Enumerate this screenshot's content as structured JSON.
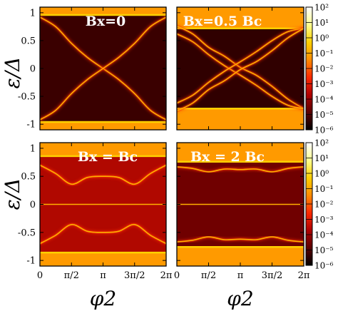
{
  "chart_data": {
    "type": "heatmap",
    "ylabel": "ε/Δ",
    "xlabel": "φ2",
    "x_ticks": [
      "0",
      "π/2",
      "π",
      "3π/2",
      "2π"
    ],
    "y_ticks": [
      "1",
      "0.5",
      "0",
      "-0.5",
      "-1"
    ],
    "xlim": [
      0,
      6.2832
    ],
    "ylim": [
      -1.1,
      1.1
    ],
    "colorbar": {
      "scale": "log",
      "range": [
        1e-06,
        100
      ],
      "ticks": [
        "10²",
        "10¹",
        "10⁰",
        "10⁻¹",
        "10⁻²",
        "10⁻³",
        "10⁻⁴",
        "10⁻⁵",
        "10⁻⁶"
      ],
      "colors": [
        "#000000",
        "#5a0000",
        "#b00000",
        "#ff2a00",
        "#ff8c00",
        "#ffd000",
        "#ffff90",
        "#ffffff"
      ]
    },
    "panels": [
      {
        "label": "Bx=0",
        "gap_edge": 0.96,
        "background": "#3a0000",
        "bands": [
          {
            "name": "band 1",
            "x": [
              0,
              0.785,
              1.571,
              2.356,
              3.142,
              3.927,
              4.712,
              5.498,
              6.283
            ],
            "y": [
              0.92,
              0.75,
              0.45,
              0.2,
              0.0,
              -0.2,
              -0.45,
              -0.75,
              -0.92
            ]
          },
          {
            "name": "band 2",
            "x": [
              0,
              0.785,
              1.571,
              2.356,
              3.142,
              3.927,
              4.712,
              5.498,
              6.283
            ],
            "y": [
              -0.92,
              -0.75,
              -0.45,
              -0.2,
              0.0,
              0.2,
              0.45,
              0.75,
              0.92
            ]
          }
        ]
      },
      {
        "label": "Bx=0.5 Bc",
        "gap_edge": 0.72,
        "background": "#300000",
        "bands": [
          {
            "name": "band 1",
            "x": [
              0,
              0.785,
              1.571,
              2.356,
              3.142,
              3.927,
              4.712,
              5.498,
              6.283
            ],
            "y": [
              0.76,
              0.62,
              0.38,
              0.22,
              0.02,
              -0.12,
              -0.32,
              -0.55,
              -0.72
            ]
          },
          {
            "name": "band 2",
            "x": [
              0,
              0.785,
              1.571,
              2.356,
              3.142,
              3.927,
              4.712,
              5.498,
              6.283
            ],
            "y": [
              0.62,
              0.48,
              0.25,
              0.05,
              -0.12,
              -0.3,
              -0.5,
              -0.66,
              -0.72
            ]
          },
          {
            "name": "band 3",
            "x": [
              0,
              0.785,
              1.571,
              2.356,
              3.142,
              3.927,
              4.712,
              5.498,
              6.283
            ],
            "y": [
              -0.62,
              -0.48,
              -0.25,
              -0.05,
              0.12,
              0.3,
              0.5,
              0.66,
              0.72
            ]
          },
          {
            "name": "band 4",
            "x": [
              0,
              0.785,
              1.571,
              2.356,
              3.142,
              3.927,
              4.712,
              5.498,
              6.283
            ],
            "y": [
              -0.76,
              -0.62,
              -0.38,
              -0.22,
              -0.02,
              0.12,
              0.32,
              0.55,
              0.72
            ]
          }
        ]
      },
      {
        "label": "Bx = Bc",
        "gap_edge": 0.86,
        "background": "#b00800",
        "bands": [
          {
            "name": "band 1",
            "x": [
              0,
              0.785,
              1.571,
              2.356,
              3.142,
              3.927,
              4.712,
              5.498,
              6.283
            ],
            "y": [
              0.7,
              0.55,
              0.36,
              0.48,
              0.5,
              0.48,
              0.36,
              0.55,
              0.7
            ]
          },
          {
            "name": "band 2",
            "x": [
              0,
              0.785,
              1.571,
              2.356,
              3.142,
              3.927,
              4.712,
              5.498,
              6.283
            ],
            "y": [
              0.0,
              0.0,
              0.0,
              0.0,
              0.0,
              0.0,
              0.0,
              0.0,
              0.0
            ]
          },
          {
            "name": "band 3",
            "x": [
              0,
              0.785,
              1.571,
              2.356,
              3.142,
              3.927,
              4.712,
              5.498,
              6.283
            ],
            "y": [
              -0.7,
              -0.55,
              -0.36,
              -0.48,
              -0.5,
              -0.48,
              -0.36,
              -0.55,
              -0.7
            ]
          }
        ]
      },
      {
        "label": "Bx = 2 Bc",
        "gap_edge": 0.76,
        "background": "#700000",
        "bands": [
          {
            "name": "band 1",
            "x": [
              0,
              0.785,
              1.571,
              2.356,
              3.142,
              3.927,
              4.712,
              5.498,
              6.283
            ],
            "y": [
              0.67,
              0.64,
              0.58,
              0.63,
              0.62,
              0.63,
              0.58,
              0.64,
              0.67
            ]
          },
          {
            "name": "band 2",
            "x": [
              0,
              0.785,
              1.571,
              2.356,
              3.142,
              3.927,
              4.712,
              5.498,
              6.283
            ],
            "y": [
              0.0,
              0.0,
              0.0,
              0.0,
              0.0,
              0.0,
              0.0,
              0.0,
              0.0
            ]
          },
          {
            "name": "band 3",
            "x": [
              0,
              0.785,
              1.571,
              2.356,
              3.142,
              3.927,
              4.712,
              5.498,
              6.283
            ],
            "y": [
              -0.67,
              -0.64,
              -0.58,
              -0.63,
              -0.62,
              -0.63,
              -0.58,
              -0.64,
              -0.67
            ]
          }
        ]
      }
    ]
  }
}
